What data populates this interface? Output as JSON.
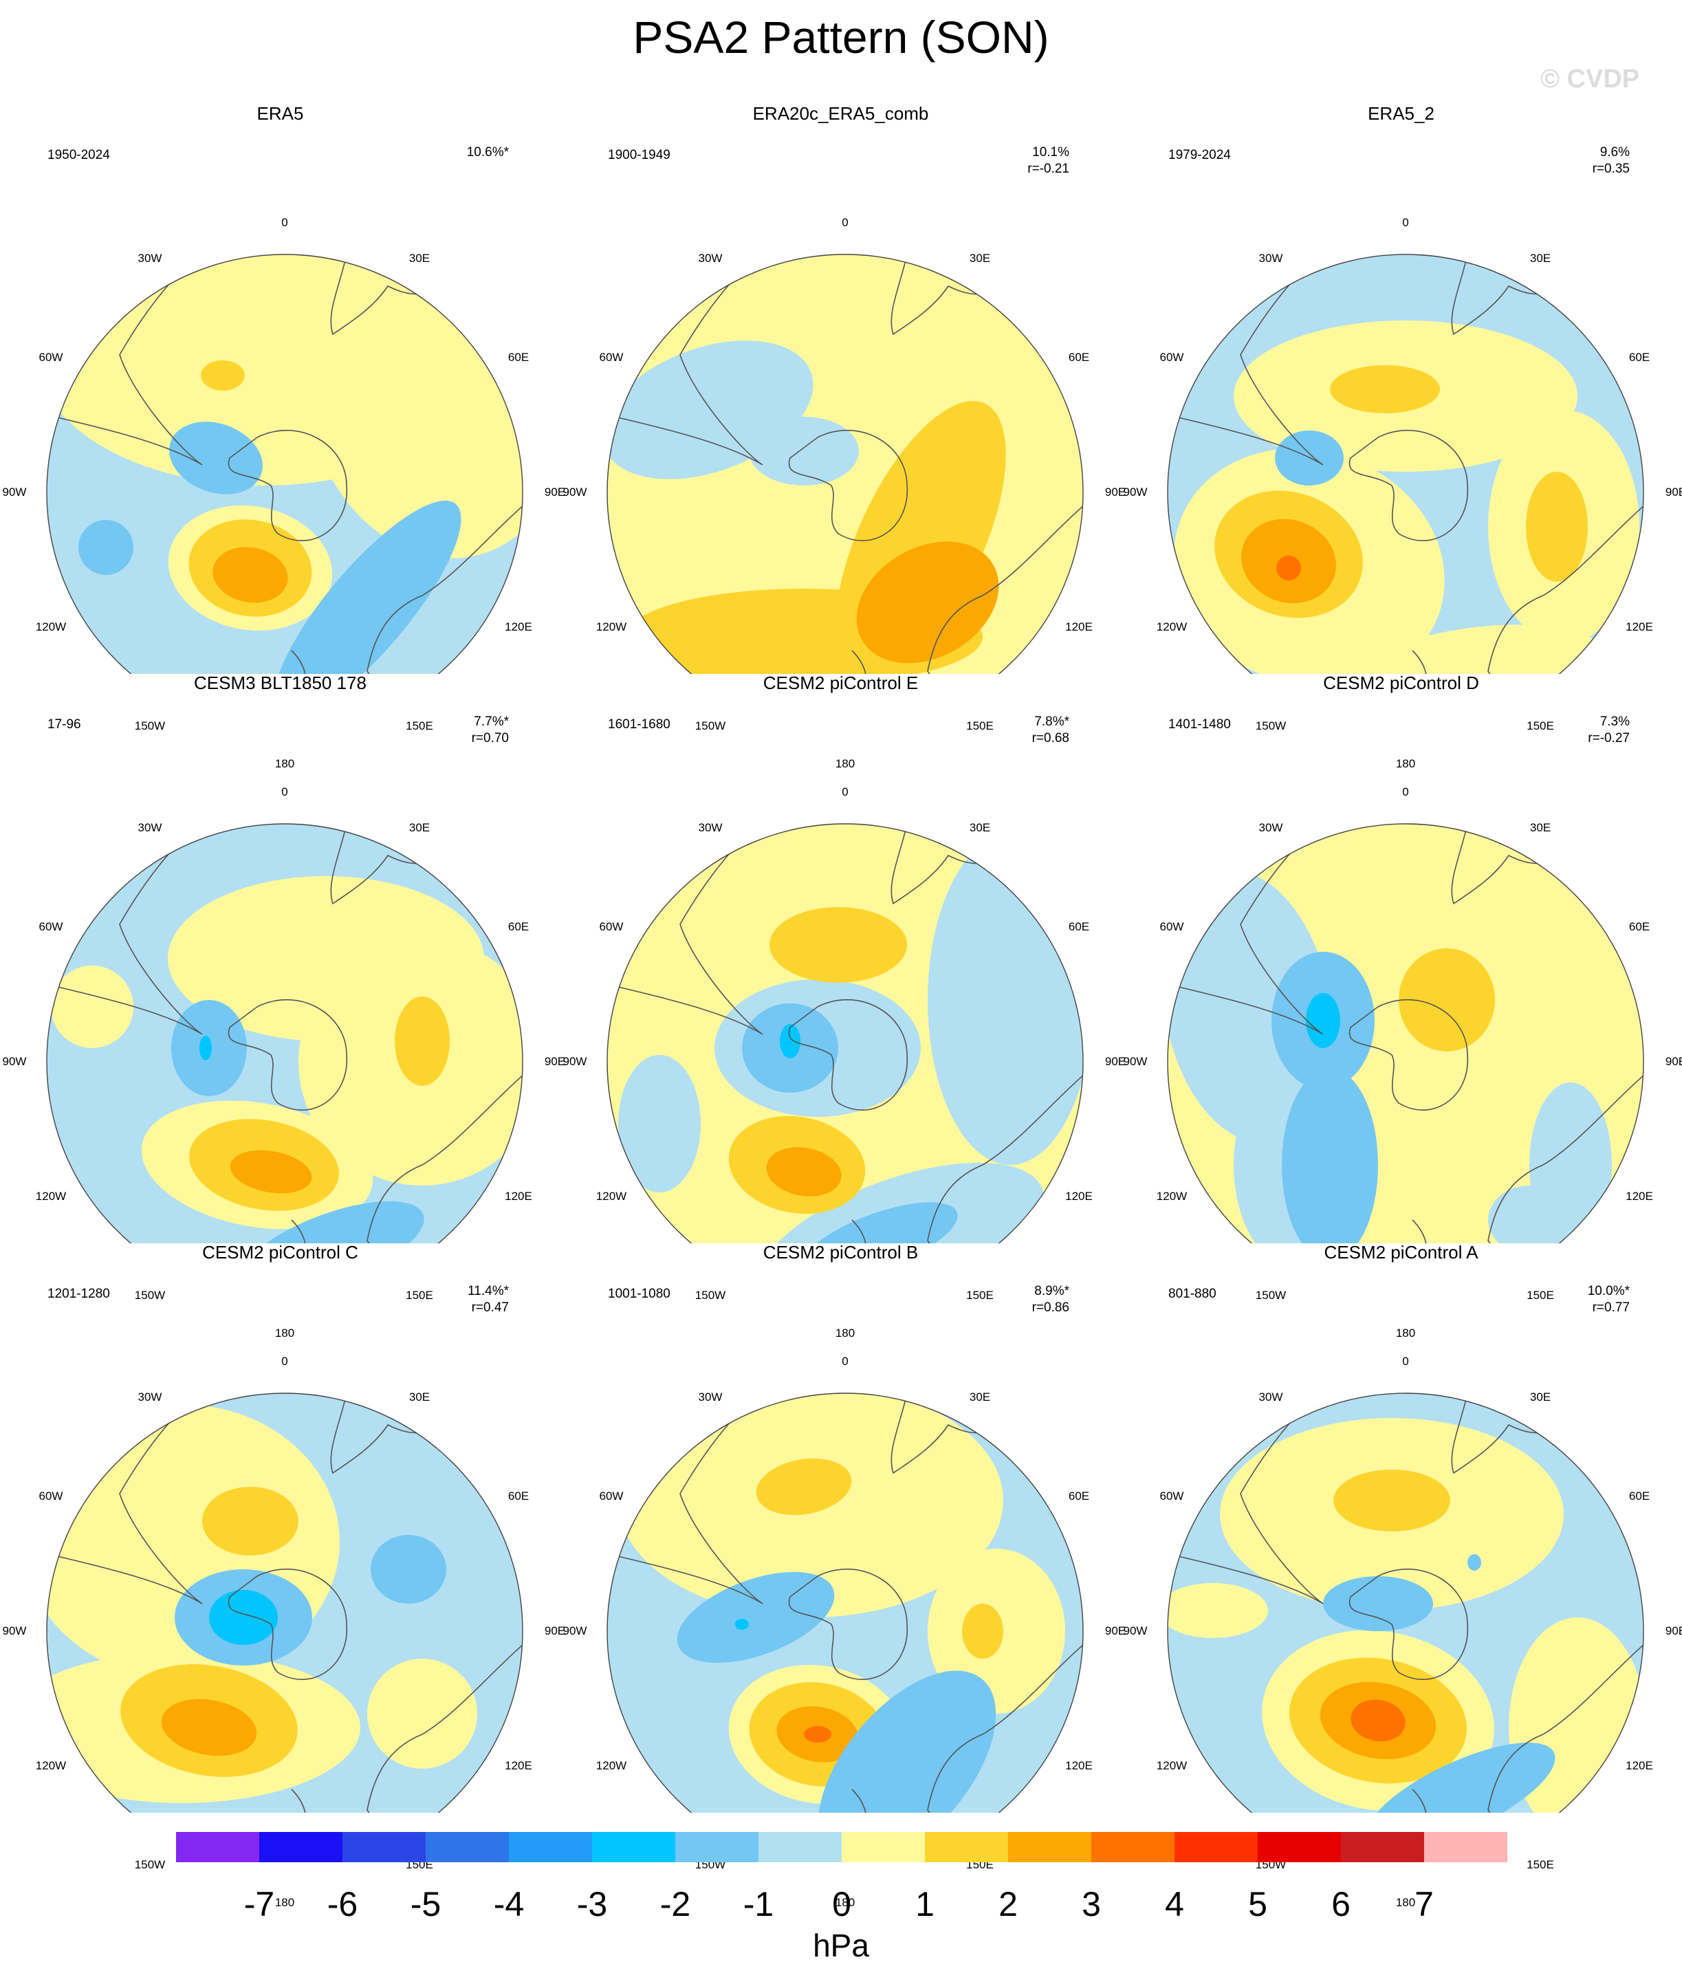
{
  "title": "PSA2 Pattern (SON)",
  "watermark": "© CVDP",
  "longitude_labels": {
    "top": "0",
    "bottom": "180",
    "w30": "30W",
    "e30": "30E",
    "w60": "60W",
    "e60": "60E",
    "w90": "90W",
    "e90": "90E",
    "w120": "120W",
    "e120": "120E",
    "w150": "150W",
    "e150": "150E"
  },
  "panels": [
    {
      "title": "ERA5",
      "years": "1950-2024",
      "pct": "10.6%*",
      "r": ""
    },
    {
      "title": "ERA20c_ERA5_comb",
      "years": "1900-1949",
      "pct": "10.1%",
      "r": "r=-0.21"
    },
    {
      "title": "ERA5_2",
      "years": "1979-2024",
      "pct": "9.6%",
      "r": "r=0.35"
    },
    {
      "title": "CESM3 BLT1850 178",
      "years": "17-96",
      "pct": "7.7%*",
      "r": "r=0.70"
    },
    {
      "title": "CESM2 piControl E",
      "years": "1601-1680",
      "pct": "7.8%*",
      "r": "r=0.68"
    },
    {
      "title": "CESM2 piControl D",
      "years": "1401-1480",
      "pct": "7.3%",
      "r": "r=-0.27"
    },
    {
      "title": "CESM2 piControl C",
      "years": "1201-1280",
      "pct": "11.4%*",
      "r": "r=0.47"
    },
    {
      "title": "CESM2 piControl B",
      "years": "1001-1080",
      "pct": "8.9%*",
      "r": "r=0.86"
    },
    {
      "title": "CESM2 piControl A",
      "years": "801-880",
      "pct": "10.0%*",
      "r": "r=0.77"
    }
  ],
  "colorbar": {
    "colors": [
      "#8427f0",
      "#1a0ff5",
      "#2c46e6",
      "#2f74e8",
      "#239cf7",
      "#00c5ff",
      "#74c7f2",
      "#b3dff2",
      "#fff99c",
      "#fdd42e",
      "#fca800",
      "#fe7200",
      "#ff3000",
      "#e80000",
      "#cb1e21",
      "#ffb3b3"
    ],
    "labels": [
      "-7",
      "-6",
      "-5",
      "-4",
      "-3",
      "-2",
      "-1",
      "0",
      "1",
      "2",
      "3",
      "4",
      "5",
      "6",
      "7"
    ],
    "units": "hPa"
  },
  "palette": {
    "neg1": "#b3dff2",
    "neg2": "#74c7f2",
    "neg3": "#00c5ff",
    "pos1": "#fff99c",
    "pos2": "#fdd42e",
    "pos3": "#fca800",
    "pos4": "#fe7200",
    "land": "#555555"
  }
}
